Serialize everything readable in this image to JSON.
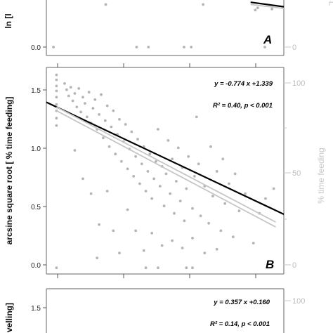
{
  "colors": {
    "point": "#b5b5b5",
    "fit_line": "#000000",
    "ref_line": "#c6c6c6",
    "frame": "#555555",
    "right_axis": "#c8c8c8"
  },
  "chart_data": [
    {
      "panel": "A",
      "type": "scatter",
      "ylabel": "ln [l",
      "ylabel_right": "L",
      "yticks_left": [
        "0.0"
      ],
      "yticks_right": [
        "0"
      ],
      "panel_label": "A",
      "ylim": [
        0,
        0.42
      ],
      "xlim": [
        0,
        1
      ],
      "points": [
        {
          "x": 0.03,
          "y": 0.0
        },
        {
          "x": 0.38,
          "y": 0.0
        },
        {
          "x": 0.43,
          "y": 0.0
        },
        {
          "x": 0.58,
          "y": 0.0
        },
        {
          "x": 0.61,
          "y": 0.0
        },
        {
          "x": 0.92,
          "y": 0.0
        },
        {
          "x": 0.25,
          "y": 0.38
        },
        {
          "x": 0.66,
          "y": 0.38
        },
        {
          "x": 0.89,
          "y": 0.35
        },
        {
          "x": 0.88,
          "y": 0.33
        },
        {
          "x": 0.95,
          "y": 0.34
        }
      ],
      "fit_lines": [
        {
          "kind": "fit",
          "x": [
            0.86,
            1.0
          ],
          "y": [
            0.4,
            0.36
          ]
        },
        {
          "kind": "ref",
          "x": [
            0.86,
            1.0
          ],
          "y": [
            0.38,
            0.345
          ]
        }
      ]
    },
    {
      "panel": "B",
      "type": "scatter",
      "ylabel": "arcsine square root [ % time feeding]",
      "ylabel_right": "% time feeding",
      "yticks_left": [
        "0.0",
        "0.5",
        "1.0",
        "1.5"
      ],
      "yticks_right": [
        "0",
        "50",
        "100"
      ],
      "equation": "y = -0.774 x +1.339",
      "stats": "R² = 0.40, p < 0.001",
      "panel_label": "B",
      "xlim": [
        0,
        1.17
      ],
      "ylim": [
        -0.05,
        1.62
      ],
      "points": [
        {
          "x": 0.05,
          "y": 1.56
        },
        {
          "x": 0.05,
          "y": 1.52
        },
        {
          "x": 0.05,
          "y": 1.47
        },
        {
          "x": 0.05,
          "y": 1.43
        },
        {
          "x": 0.05,
          "y": 1.38
        },
        {
          "x": 0.05,
          "y": 1.32
        },
        {
          "x": 0.05,
          "y": 1.27
        },
        {
          "x": 0.05,
          "y": 1.21
        },
        {
          "x": 0.05,
          "y": 1.15
        },
        {
          "x": 0.05,
          "y": 0.0
        },
        {
          "x": 0.09,
          "y": 1.49
        },
        {
          "x": 0.1,
          "y": 1.44
        },
        {
          "x": 0.11,
          "y": 1.39
        },
        {
          "x": 0.12,
          "y": 1.46
        },
        {
          "x": 0.13,
          "y": 1.35
        },
        {
          "x": 0.14,
          "y": 1.41
        },
        {
          "x": 0.15,
          "y": 1.3
        },
        {
          "x": 0.16,
          "y": 1.45
        },
        {
          "x": 0.17,
          "y": 1.26
        },
        {
          "x": 0.18,
          "y": 1.38
        },
        {
          "x": 0.19,
          "y": 1.33
        },
        {
          "x": 0.2,
          "y": 1.22
        },
        {
          "x": 0.21,
          "y": 1.42
        },
        {
          "x": 0.22,
          "y": 1.17
        },
        {
          "x": 0.23,
          "y": 1.29
        },
        {
          "x": 0.24,
          "y": 1.36
        },
        {
          "x": 0.25,
          "y": 1.12
        },
        {
          "x": 0.26,
          "y": 1.24
        },
        {
          "x": 0.27,
          "y": 1.4
        },
        {
          "x": 0.28,
          "y": 1.05
        },
        {
          "x": 0.29,
          "y": 1.19
        },
        {
          "x": 0.3,
          "y": 1.31
        },
        {
          "x": 0.31,
          "y": 0.98
        },
        {
          "x": 0.32,
          "y": 1.14
        },
        {
          "x": 0.33,
          "y": 1.27
        },
        {
          "x": 0.34,
          "y": 0.92
        },
        {
          "x": 0.35,
          "y": 1.08
        },
        {
          "x": 0.36,
          "y": 1.2
        },
        {
          "x": 0.37,
          "y": 0.86
        },
        {
          "x": 0.38,
          "y": 1.02
        },
        {
          "x": 0.39,
          "y": 1.16
        },
        {
          "x": 0.4,
          "y": 0.8
        },
        {
          "x": 0.41,
          "y": 0.96
        },
        {
          "x": 0.42,
          "y": 1.1
        },
        {
          "x": 0.43,
          "y": 0.74
        },
        {
          "x": 0.44,
          "y": 0.9
        },
        {
          "x": 0.45,
          "y": 1.04
        },
        {
          "x": 0.46,
          "y": 0.68
        },
        {
          "x": 0.47,
          "y": 0.84
        },
        {
          "x": 0.48,
          "y": 0.98
        },
        {
          "x": 0.49,
          "y": 0.62
        },
        {
          "x": 0.5,
          "y": 0.78
        },
        {
          "x": 0.51,
          "y": 0.92
        },
        {
          "x": 0.52,
          "y": 0.56
        },
        {
          "x": 0.53,
          "y": 0.72
        },
        {
          "x": 0.54,
          "y": 0.86
        },
        {
          "x": 0.55,
          "y": 1.12
        },
        {
          "x": 0.56,
          "y": 0.66
        },
        {
          "x": 0.57,
          "y": 0.82
        },
        {
          "x": 0.58,
          "y": 0.5
        },
        {
          "x": 0.59,
          "y": 0.76
        },
        {
          "x": 0.6,
          "y": 1.03
        },
        {
          "x": 0.61,
          "y": 0.6
        },
        {
          "x": 0.62,
          "y": 0.88
        },
        {
          "x": 0.63,
          "y": 0.44
        },
        {
          "x": 0.64,
          "y": 0.7
        },
        {
          "x": 0.65,
          "y": 0.97
        },
        {
          "x": 0.66,
          "y": 0.54
        },
        {
          "x": 0.67,
          "y": 0.81
        },
        {
          "x": 0.68,
          "y": 0.38
        },
        {
          "x": 0.69,
          "y": 0.64
        },
        {
          "x": 0.7,
          "y": 0.9
        },
        {
          "x": 0.72,
          "y": 0.48
        },
        {
          "x": 0.73,
          "y": 0.74
        },
        {
          "x": 0.75,
          "y": 0.84
        },
        {
          "x": 0.76,
          "y": 0.42
        },
        {
          "x": 0.78,
          "y": 0.66
        },
        {
          "x": 0.8,
          "y": 0.36
        },
        {
          "x": 0.82,
          "y": 0.58
        },
        {
          "x": 0.84,
          "y": 0.78
        },
        {
          "x": 0.86,
          "y": 0.3
        },
        {
          "x": 0.88,
          "y": 0.52
        },
        {
          "x": 0.9,
          "y": 0.68
        },
        {
          "x": 0.92,
          "y": 0.25
        },
        {
          "x": 0.95,
          "y": 0.46
        },
        {
          "x": 0.98,
          "y": 0.6
        },
        {
          "x": 1.02,
          "y": 0.2
        },
        {
          "x": 1.05,
          "y": 0.44
        },
        {
          "x": 1.08,
          "y": 0.56
        },
        {
          "x": 1.12,
          "y": 0.64
        },
        {
          "x": 0.14,
          "y": 0.95
        },
        {
          "x": 0.18,
          "y": 0.72
        },
        {
          "x": 0.22,
          "y": 0.6
        },
        {
          "x": 0.26,
          "y": 0.35
        },
        {
          "x": 0.3,
          "y": 0.62
        },
        {
          "x": 0.33,
          "y": 0.3
        },
        {
          "x": 0.36,
          "y": 0.12
        },
        {
          "x": 0.4,
          "y": 0.47
        },
        {
          "x": 0.44,
          "y": 0.3
        },
        {
          "x": 0.48,
          "y": 0.14
        },
        {
          "x": 0.52,
          "y": 0.28
        },
        {
          "x": 0.57,
          "y": 0.18
        },
        {
          "x": 0.62,
          "y": 0.22
        },
        {
          "x": 0.67,
          "y": 0.16
        },
        {
          "x": 0.72,
          "y": 0.24
        },
        {
          "x": 0.78,
          "y": 0.12
        },
        {
          "x": 0.84,
          "y": 0.15
        },
        {
          "x": 0.74,
          "y": 1.22
        },
        {
          "x": 0.81,
          "y": 0.98
        },
        {
          "x": 0.87,
          "y": 0.88
        },
        {
          "x": 0.93,
          "y": 0.76
        },
        {
          "x": 0.25,
          "y": 0.08
        },
        {
          "x": 0.49,
          "y": 0.0
        },
        {
          "x": 0.55,
          "y": 0.0
        },
        {
          "x": 0.69,
          "y": 0.0
        },
        {
          "x": 0.72,
          "y": 0.0
        }
      ],
      "fit_lines": [
        {
          "kind": "fit",
          "x": [
            0.0,
            1.17
          ],
          "y": [
            1.339,
            0.433
          ]
        },
        {
          "kind": "ref",
          "x": [
            0.05,
            1.13
          ],
          "y": [
            1.3,
            0.37
          ]
        },
        {
          "kind": "ref",
          "x": [
            0.05,
            1.13
          ],
          "y": [
            1.27,
            0.33
          ]
        }
      ]
    },
    {
      "panel": "C",
      "type": "scatter",
      "ylabel": "velling]",
      "yticks_left": [
        "1.5"
      ],
      "yticks_right": [
        "100"
      ],
      "equation": "y = 0.357 x +0.160",
      "stats": "R² = 0.14, p < 0.001",
      "xlim": [
        0,
        1.17
      ],
      "ylim": [
        1.0,
        1.62
      ]
    }
  ]
}
